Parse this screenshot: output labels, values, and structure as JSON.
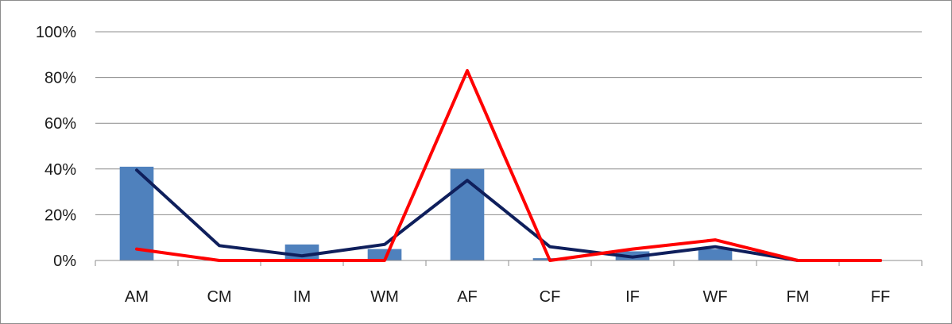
{
  "chart_data": {
    "type": "bar",
    "categories": [
      "AM",
      "CM",
      "IM",
      "WM",
      "AF",
      "CF",
      "IF",
      "WF",
      "FM",
      "FF"
    ],
    "title": "",
    "xlabel": "",
    "ylabel": "",
    "ylim": [
      0,
      100
    ],
    "yticks": [
      0,
      20,
      40,
      60,
      80,
      100
    ],
    "ytick_labels": [
      "0%",
      "20%",
      "40%",
      "60%",
      "80%",
      "100%"
    ],
    "grid": true,
    "legend": "none",
    "series": [
      {
        "kind": "bar",
        "color": "#4f81bd",
        "values": [
          41,
          0,
          7,
          5,
          40,
          1,
          4,
          5,
          0,
          0
        ]
      },
      {
        "kind": "line",
        "color": "#0f1f5c",
        "values": [
          39.5,
          6.5,
          2,
          7,
          35,
          6,
          1.5,
          6,
          0,
          0
        ]
      },
      {
        "kind": "line",
        "color": "#ff0000",
        "values": [
          5,
          0,
          0,
          0,
          83,
          0,
          5,
          9,
          0,
          0
        ]
      }
    ]
  }
}
